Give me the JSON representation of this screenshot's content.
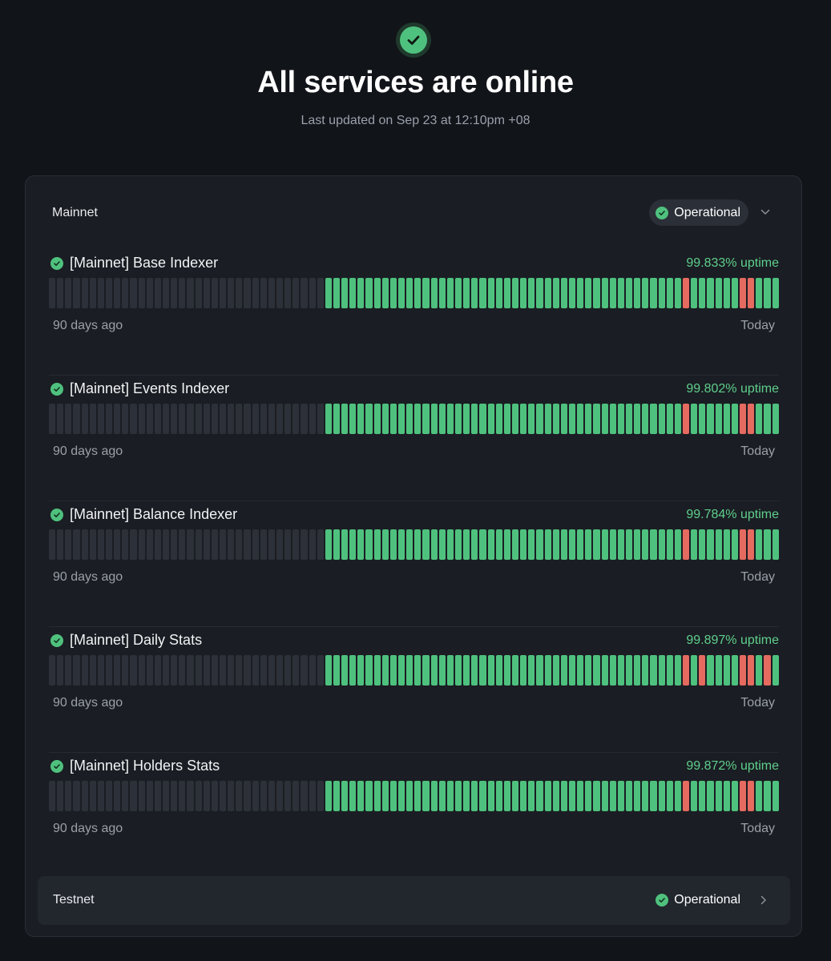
{
  "hero": {
    "icon": "check-circle-icon",
    "title": "All services are online",
    "subtitle": "Last updated on Sep 23 at 12:10pm +08"
  },
  "colors": {
    "operational": "#4fc17e",
    "outage": "#e56a5f",
    "no_data": "#2c3038",
    "uptime_text": "#5fcf8c"
  },
  "groups": [
    {
      "name": "Mainnet",
      "status": "Operational",
      "expanded": true,
      "toggle_icon": "chevron-down-icon",
      "services": [
        {
          "name": "[Mainnet] Base Indexer",
          "uptime": "99.833% uptime",
          "days": [
            0,
            0,
            0,
            0,
            0,
            0,
            0,
            0,
            0,
            0,
            0,
            0,
            0,
            0,
            0,
            0,
            0,
            0,
            0,
            0,
            0,
            0,
            0,
            0,
            0,
            0,
            0,
            0,
            0,
            0,
            0,
            0,
            0,
            0,
            1,
            1,
            1,
            1,
            1,
            1,
            1,
            1,
            1,
            1,
            1,
            1,
            1,
            1,
            1,
            1,
            1,
            1,
            1,
            1,
            1,
            1,
            1,
            1,
            1,
            1,
            1,
            1,
            1,
            1,
            1,
            1,
            1,
            1,
            1,
            1,
            1,
            1,
            1,
            1,
            1,
            1,
            1,
            1,
            2,
            1,
            1,
            1,
            1,
            1,
            1,
            2,
            2,
            1,
            1,
            1
          ],
          "from_label": "90 days ago",
          "to_label": "Today"
        },
        {
          "name": "[Mainnet] Events Indexer",
          "uptime": "99.802% uptime",
          "days": [
            0,
            0,
            0,
            0,
            0,
            0,
            0,
            0,
            0,
            0,
            0,
            0,
            0,
            0,
            0,
            0,
            0,
            0,
            0,
            0,
            0,
            0,
            0,
            0,
            0,
            0,
            0,
            0,
            0,
            0,
            0,
            0,
            0,
            0,
            1,
            1,
            1,
            1,
            1,
            1,
            1,
            1,
            1,
            1,
            1,
            1,
            1,
            1,
            1,
            1,
            1,
            1,
            1,
            1,
            1,
            1,
            1,
            1,
            1,
            1,
            1,
            1,
            1,
            1,
            1,
            1,
            1,
            1,
            1,
            1,
            1,
            1,
            1,
            1,
            1,
            1,
            1,
            1,
            2,
            1,
            1,
            1,
            1,
            1,
            1,
            2,
            2,
            1,
            1,
            1
          ],
          "from_label": "90 days ago",
          "to_label": "Today"
        },
        {
          "name": "[Mainnet] Balance Indexer",
          "uptime": "99.784% uptime",
          "days": [
            0,
            0,
            0,
            0,
            0,
            0,
            0,
            0,
            0,
            0,
            0,
            0,
            0,
            0,
            0,
            0,
            0,
            0,
            0,
            0,
            0,
            0,
            0,
            0,
            0,
            0,
            0,
            0,
            0,
            0,
            0,
            0,
            0,
            0,
            1,
            1,
            1,
            1,
            1,
            1,
            1,
            1,
            1,
            1,
            1,
            1,
            1,
            1,
            1,
            1,
            1,
            1,
            1,
            1,
            1,
            1,
            1,
            1,
            1,
            1,
            1,
            1,
            1,
            1,
            1,
            1,
            1,
            1,
            1,
            1,
            1,
            1,
            1,
            1,
            1,
            1,
            1,
            1,
            2,
            1,
            1,
            1,
            1,
            1,
            1,
            2,
            2,
            1,
            1,
            1
          ],
          "from_label": "90 days ago",
          "to_label": "Today"
        },
        {
          "name": "[Mainnet] Daily Stats",
          "uptime": "99.897% uptime",
          "days": [
            0,
            0,
            0,
            0,
            0,
            0,
            0,
            0,
            0,
            0,
            0,
            0,
            0,
            0,
            0,
            0,
            0,
            0,
            0,
            0,
            0,
            0,
            0,
            0,
            0,
            0,
            0,
            0,
            0,
            0,
            0,
            0,
            0,
            0,
            1,
            1,
            1,
            1,
            1,
            1,
            1,
            1,
            1,
            1,
            1,
            1,
            1,
            1,
            1,
            1,
            1,
            1,
            1,
            1,
            1,
            1,
            1,
            1,
            1,
            1,
            1,
            1,
            1,
            1,
            1,
            1,
            1,
            1,
            1,
            1,
            1,
            1,
            1,
            1,
            1,
            1,
            1,
            1,
            2,
            1,
            2,
            1,
            1,
            1,
            1,
            2,
            2,
            1,
            2,
            1
          ],
          "from_label": "90 days ago",
          "to_label": "Today"
        },
        {
          "name": "[Mainnet] Holders Stats",
          "uptime": "99.872% uptime",
          "days": [
            0,
            0,
            0,
            0,
            0,
            0,
            0,
            0,
            0,
            0,
            0,
            0,
            0,
            0,
            0,
            0,
            0,
            0,
            0,
            0,
            0,
            0,
            0,
            0,
            0,
            0,
            0,
            0,
            0,
            0,
            0,
            0,
            0,
            0,
            1,
            1,
            1,
            1,
            1,
            1,
            1,
            1,
            1,
            1,
            1,
            1,
            1,
            1,
            1,
            1,
            1,
            1,
            1,
            1,
            1,
            1,
            1,
            1,
            1,
            1,
            1,
            1,
            1,
            1,
            1,
            1,
            1,
            1,
            1,
            1,
            1,
            1,
            1,
            1,
            1,
            1,
            1,
            1,
            2,
            1,
            1,
            1,
            1,
            1,
            1,
            2,
            2,
            1,
            1,
            1
          ],
          "from_label": "90 days ago",
          "to_label": "Today"
        }
      ]
    },
    {
      "name": "Testnet",
      "status": "Operational",
      "expanded": false,
      "toggle_icon": "chevron-right-icon"
    }
  ]
}
